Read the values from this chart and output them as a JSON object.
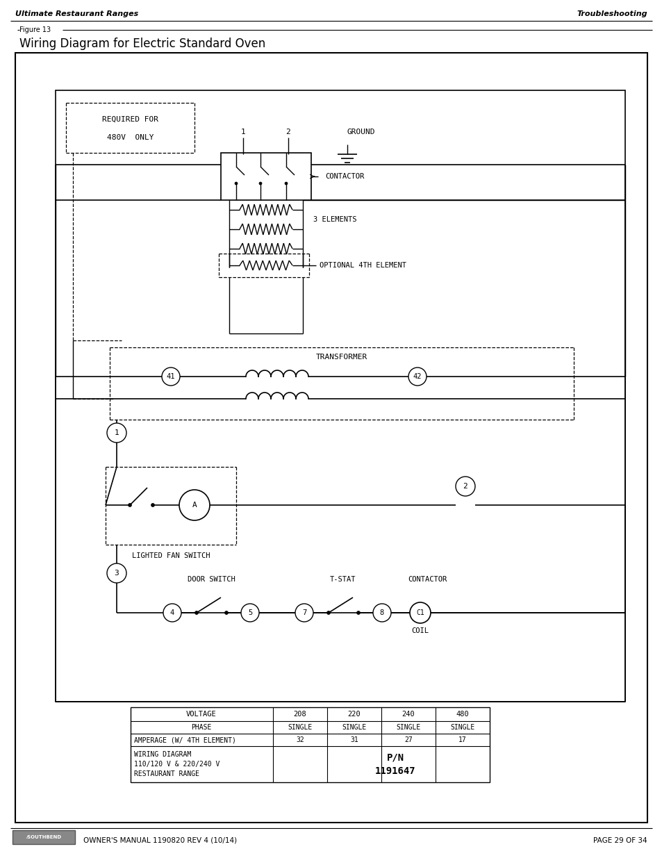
{
  "title": "Wiring Diagram for Electric Standard Oven",
  "figure_label": "Figure 13",
  "header_left": "Ultimate Restaurant Ranges",
  "header_right": "Troubleshooting",
  "footer_left": "OWNER'S MANUAL 1190820 REV 4 (10/14)",
  "footer_right": "PAGE 29 OF 34",
  "bg_color": "#ffffff",
  "table_headers": [
    "VOLTAGE",
    "208",
    "220",
    "240",
    "480"
  ],
  "table_row1": [
    "PHASE",
    "SINGLE",
    "SINGLE",
    "SINGLE",
    "SINGLE"
  ],
  "table_row2": [
    "AMPERAGE (W/ 4TH ELEMENT)",
    "32",
    "31",
    "27",
    "17"
  ],
  "table_row3_left": "WIRING DIAGRAM\n110/120 V & 220/240 V\nRESTAURANT RANGE",
  "table_row3_right": "P/N\n1191647"
}
